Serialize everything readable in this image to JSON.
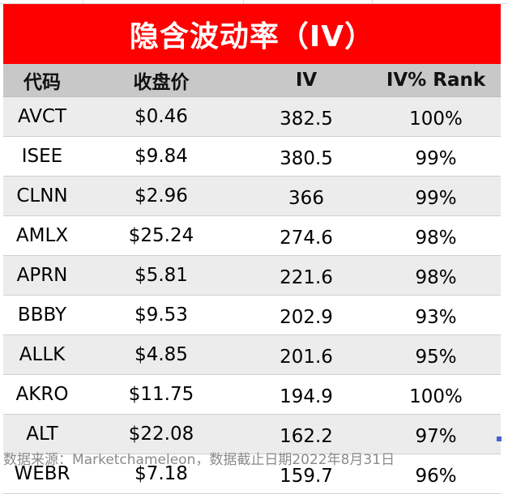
{
  "title": "隐含波动率（IV）",
  "table": {
    "headers": [
      "代码",
      "收盘价",
      "IV",
      "IV% Rank"
    ],
    "rows": [
      {
        "code": "AVCT",
        "close": "$0.46",
        "iv": "382.5",
        "rank": "100%"
      },
      {
        "code": "ISEE",
        "close": "$9.84",
        "iv": "380.5",
        "rank": "99%"
      },
      {
        "code": "CLNN",
        "close": "$2.96",
        "iv": "366",
        "rank": "99%"
      },
      {
        "code": "AMLX",
        "close": "$25.24",
        "iv": "274.6",
        "rank": "98%"
      },
      {
        "code": "APRN",
        "close": "$5.81",
        "iv": "221.6",
        "rank": "98%"
      },
      {
        "code": "BBBY",
        "close": "$9.53",
        "iv": "202.9",
        "rank": "93%"
      },
      {
        "code": "ALLK",
        "close": "$4.85",
        "iv": "201.6",
        "rank": "95%"
      },
      {
        "code": "AKRO",
        "close": "$11.75",
        "iv": "194.9",
        "rank": "100%"
      },
      {
        "code": "ALT",
        "close": "$22.08",
        "iv": "162.2",
        "rank": "97%"
      },
      {
        "code": "WEBR",
        "close": "$7.18",
        "iv": "159.7",
        "rank": "96%"
      }
    ]
  },
  "footnote": "数据来源：Marketchameleon，数据截止日期2022年8月31日",
  "colors": {
    "title_bg": "#ff0000",
    "header_bg": "#c8c8c8",
    "stripe_bg": "#ececec"
  }
}
